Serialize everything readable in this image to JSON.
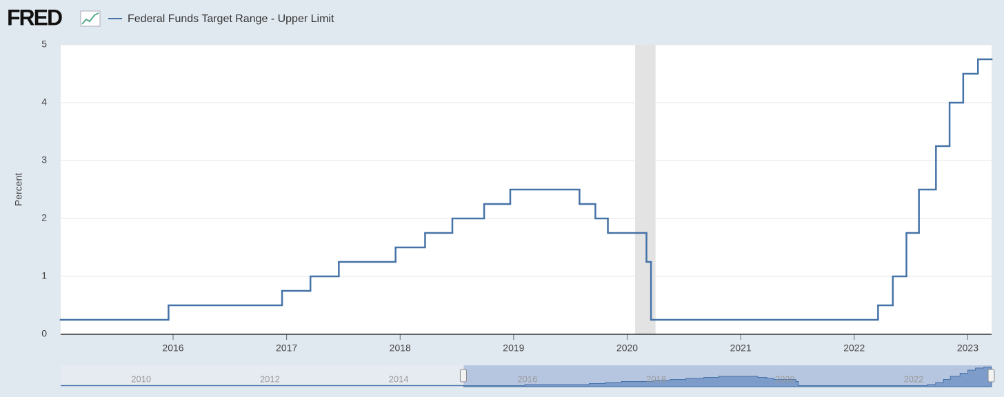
{
  "chart_data": {
    "type": "step",
    "logo": "FRED",
    "y_label": "Percent",
    "x": [
      2015.01,
      2015.96,
      2016.96,
      2017.21,
      2017.46,
      2017.96,
      2018.22,
      2018.46,
      2018.74,
      2018.97,
      2019.58,
      2019.72,
      2019.83,
      2020.17,
      2020.21,
      2022.21,
      2022.34,
      2022.46,
      2022.57,
      2022.72,
      2022.84,
      2022.96,
      2023.09
    ],
    "series": [
      {
        "name": "Federal Funds Target Range - Upper Limit",
        "color": "#4572a7",
        "values": [
          0.25,
          0.5,
          0.75,
          1.0,
          1.25,
          1.5,
          1.75,
          2.0,
          2.25,
          2.5,
          2.25,
          2.0,
          1.75,
          1.25,
          0.25,
          0.5,
          1.0,
          1.75,
          2.5,
          3.25,
          4.0,
          4.5,
          4.75
        ]
      }
    ],
    "xlim": [
      2015.01,
      2023.21
    ],
    "ylim": [
      0,
      5
    ],
    "xticks": [
      2016,
      2017,
      2018,
      2019,
      2020,
      2021,
      2022,
      2023
    ],
    "yticks": [
      0,
      1,
      2,
      3,
      4,
      5
    ],
    "grid": true,
    "recession": [
      2020.07,
      2020.25
    ],
    "navigator": {
      "xlim": [
        2008.75,
        2023.21
      ],
      "xticks": [
        2010,
        2012,
        2014,
        2016,
        2018,
        2020,
        2022
      ]
    }
  }
}
